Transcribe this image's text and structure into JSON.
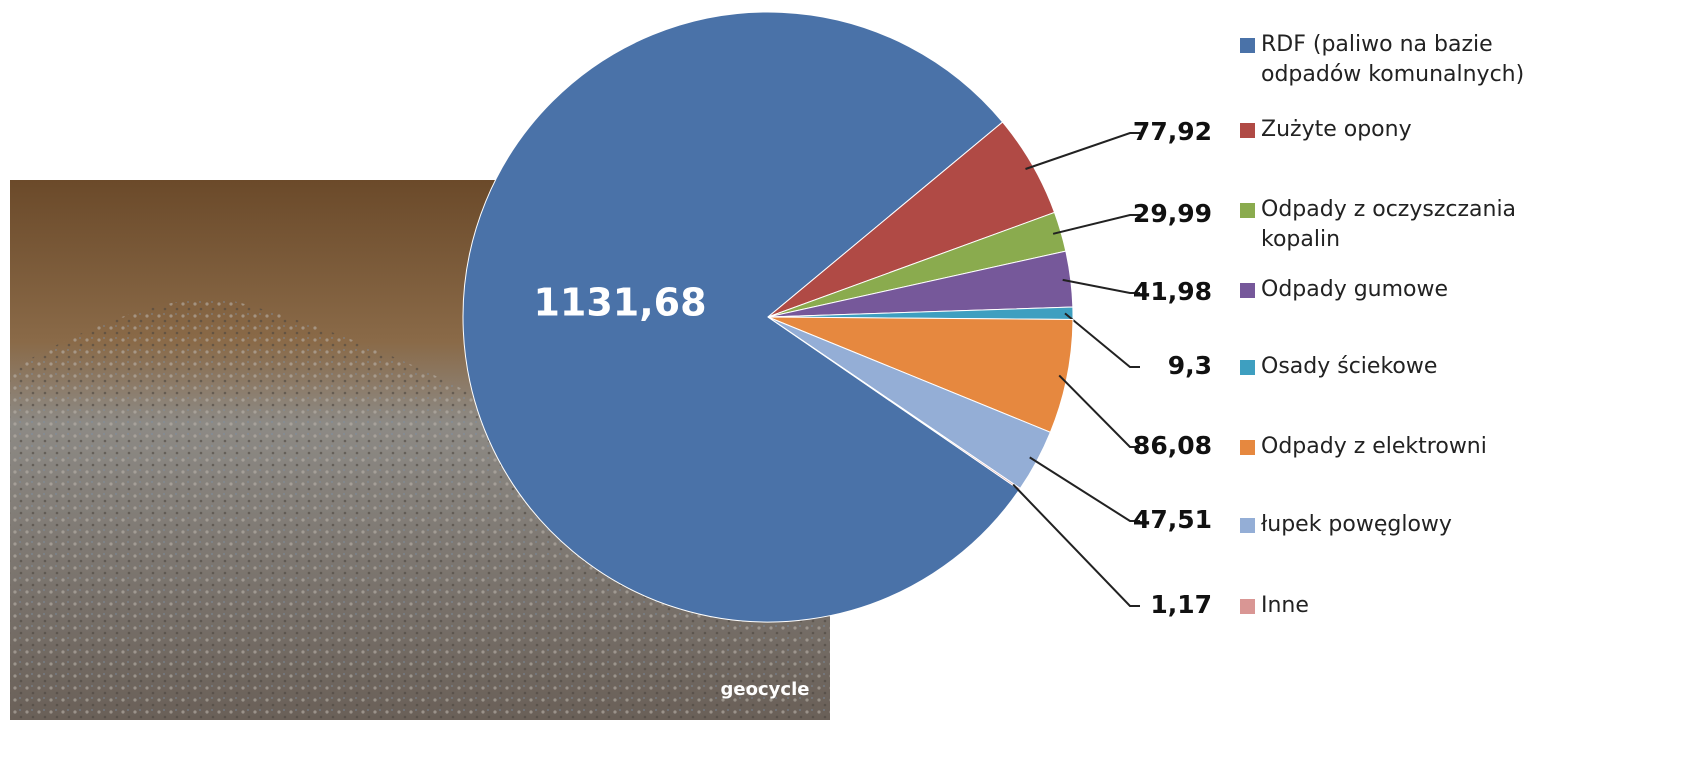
{
  "chart_data": {
    "type": "pie",
    "categories": [
      "RDF (paliwo na bazie odpadów komunalnych)",
      "Zużyte opony",
      "Odpady z oczyszczania kopalin",
      "Odpady gumowe",
      "Osady ściekowe",
      "Odpady z elektrowni",
      "łupek powęglowy",
      "Inne"
    ],
    "values": [
      1131.68,
      77.92,
      29.99,
      41.98,
      9.3,
      86.08,
      47.51,
      1.17
    ],
    "value_labels": [
      "1131,68",
      "77,92",
      "29,99",
      "41,98",
      "9,3",
      "86,08",
      "47,51",
      "1,17"
    ],
    "colors": [
      "#4a72a8",
      "#b04a45",
      "#8aab4e",
      "#76589a",
      "#3e9fc0",
      "#e6883f",
      "#94aed6",
      "#d99694"
    ],
    "legend": "right"
  },
  "logo": "geocycle"
}
